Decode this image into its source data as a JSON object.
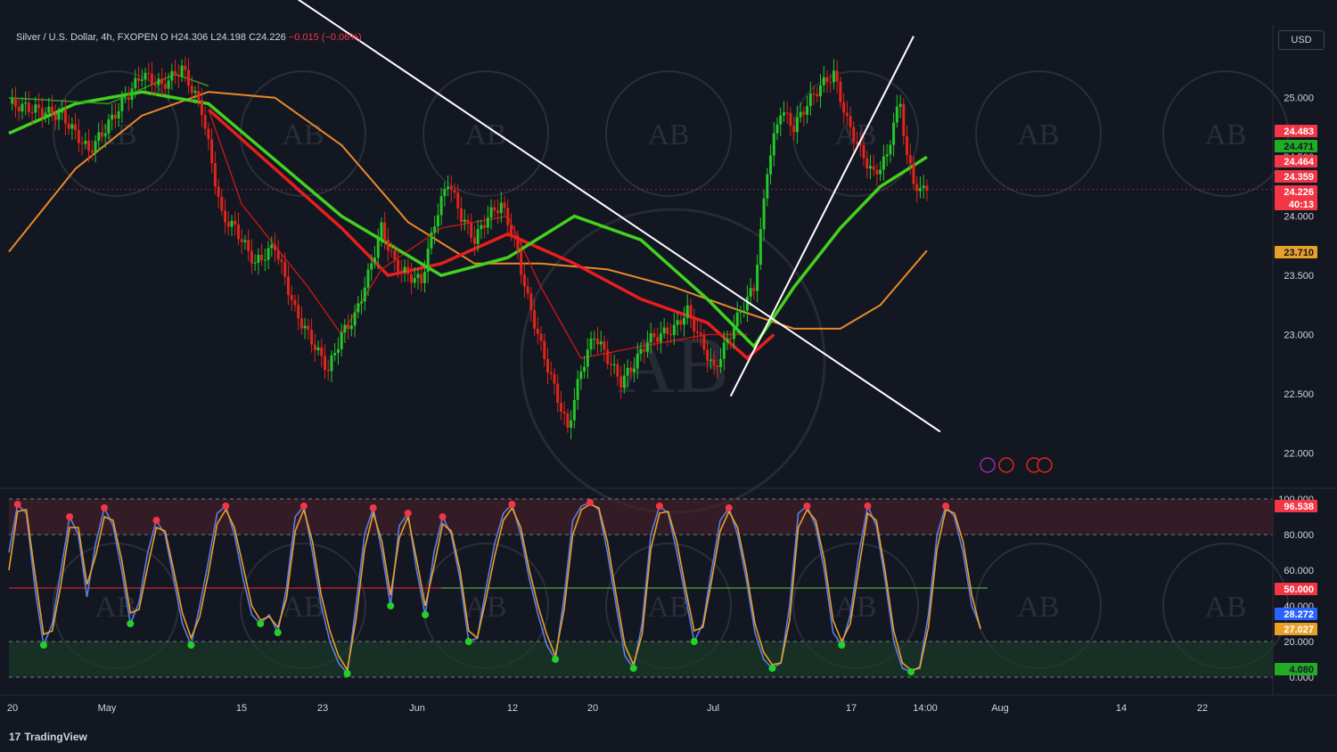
{
  "legend": {
    "symbol": "Silver / U.S. Dollar, 4h, FXOPEN",
    "open": "O",
    "high": "H24.306",
    "low": "L24.198",
    "close": "C24.226",
    "change": "−0.015 (−0.06%)"
  },
  "currency_button": "USD",
  "brand": "TradingView",
  "watermark": "AB",
  "colors": {
    "background": "#131722",
    "up": "#26c628",
    "down": "#e0251b",
    "ema_green": "#43d21e",
    "ema_red": "#e81e1e",
    "ma_orange": "#e8892a",
    "trendline": "#ffffff"
  },
  "chart_data": [
    {
      "type": "candlestick",
      "title": "Silver / U.S. Dollar, 4h, FXOPEN",
      "y_ticks": [
        "25.000",
        "24.500",
        "24.000",
        "23.500",
        "23.000",
        "22.500",
        "22.000"
      ],
      "y_tick_values": [
        25.0,
        24.5,
        24.0,
        23.5,
        23.0,
        22.5,
        22.0
      ],
      "ylim": [
        21.8,
        25.6
      ],
      "x_ticks": [
        "20",
        "May",
        "15",
        "23",
        "Jun",
        "12",
        "20",
        "Jul",
        "17",
        "14:00",
        "Aug",
        "14",
        "22"
      ],
      "price_labels": [
        {
          "value": "24.483",
          "color": "#f23645"
        },
        {
          "value": "24.471",
          "color": "#22ab24"
        },
        {
          "value": "24.464",
          "color": "#f23645"
        },
        {
          "value": "24.359",
          "color": "#f23645"
        },
        {
          "value": "24.226",
          "color": "#f23645"
        },
        {
          "value": "40:13",
          "color": "#f23645"
        },
        {
          "value": "23.710",
          "color": "#e8a02a"
        }
      ],
      "close_path": [
        [
          0,
          24.95
        ],
        [
          8,
          24.9
        ],
        [
          16,
          24.85
        ],
        [
          24,
          24.55
        ],
        [
          28,
          24.7
        ],
        [
          34,
          24.95
        ],
        [
          40,
          25.2
        ],
        [
          46,
          25.1
        ],
        [
          52,
          25.25
        ],
        [
          58,
          24.9
        ],
        [
          64,
          24.0
        ],
        [
          68,
          23.9
        ],
        [
          74,
          23.6
        ],
        [
          80,
          23.75
        ],
        [
          86,
          23.2
        ],
        [
          90,
          23.0
        ],
        [
          96,
          22.7
        ],
        [
          100,
          23.0
        ],
        [
          104,
          23.15
        ],
        [
          108,
          23.5
        ],
        [
          112,
          23.9
        ],
        [
          116,
          23.6
        ],
        [
          120,
          23.5
        ],
        [
          124,
          23.45
        ],
        [
          128,
          23.95
        ],
        [
          132,
          24.3
        ],
        [
          136,
          24.0
        ],
        [
          140,
          23.8
        ],
        [
          144,
          24.0
        ],
        [
          148,
          24.1
        ],
        [
          152,
          23.8
        ],
        [
          156,
          23.3
        ],
        [
          160,
          22.9
        ],
        [
          164,
          22.55
        ],
        [
          168,
          22.2
        ],
        [
          172,
          22.7
        ],
        [
          176,
          23.0
        ],
        [
          180,
          22.8
        ],
        [
          184,
          22.6
        ],
        [
          188,
          22.75
        ],
        [
          192,
          22.95
        ],
        [
          196,
          23.0
        ],
        [
          200,
          23.05
        ],
        [
          204,
          23.2
        ],
        [
          208,
          22.95
        ],
        [
          212,
          22.7
        ],
        [
          216,
          22.95
        ],
        [
          220,
          23.2
        ],
        [
          224,
          23.4
        ],
        [
          226,
          23.85
        ],
        [
          228,
          24.4
        ],
        [
          232,
          24.9
        ],
        [
          236,
          24.75
        ],
        [
          240,
          24.95
        ],
        [
          244,
          25.1
        ],
        [
          248,
          25.2
        ],
        [
          252,
          24.8
        ],
        [
          256,
          24.55
        ],
        [
          260,
          24.35
        ],
        [
          264,
          24.5
        ],
        [
          266,
          24.8
        ],
        [
          268,
          24.95
        ],
        [
          270,
          24.5
        ],
        [
          272,
          24.3
        ],
        [
          274,
          24.2
        ],
        [
          276,
          24.26
        ]
      ],
      "ema_fast_green": [
        [
          0,
          25.0
        ],
        [
          30,
          24.95
        ],
        [
          50,
          25.2
        ],
        [
          60,
          25.1
        ]
      ],
      "ema_red_fast": [
        [
          60,
          24.9
        ],
        [
          70,
          24.1
        ],
        [
          90,
          23.4
        ],
        [
          100,
          23.0
        ],
        [
          112,
          23.55
        ],
        [
          130,
          23.9
        ],
        [
          150,
          24.0
        ],
        [
          160,
          23.4
        ],
        [
          172,
          22.8
        ],
        [
          190,
          22.9
        ],
        [
          210,
          23.0
        ],
        [
          222,
          23.0
        ]
      ],
      "ema_red_slow": [
        [
          60,
          24.9
        ],
        [
          80,
          24.4
        ],
        [
          100,
          23.9
        ],
        [
          114,
          23.5
        ],
        [
          130,
          23.6
        ],
        [
          150,
          23.85
        ],
        [
          170,
          23.6
        ],
        [
          190,
          23.3
        ],
        [
          210,
          23.1
        ],
        [
          222,
          22.8
        ],
        [
          230,
          23.0
        ]
      ],
      "ema_green_slow": [
        [
          0,
          24.7
        ],
        [
          20,
          24.95
        ],
        [
          40,
          25.05
        ],
        [
          60,
          24.95
        ],
        [
          100,
          24.0
        ],
        [
          130,
          23.5
        ],
        [
          150,
          23.65
        ],
        [
          170,
          24.0
        ],
        [
          190,
          23.8
        ],
        [
          210,
          23.3
        ],
        [
          224,
          22.9
        ],
        [
          236,
          23.4
        ],
        [
          250,
          23.9
        ],
        [
          262,
          24.25
        ],
        [
          276,
          24.5
        ]
      ],
      "ma_curve": [
        [
          0,
          23.7
        ],
        [
          20,
          24.4
        ],
        [
          40,
          24.85
        ],
        [
          60,
          25.05
        ],
        [
          80,
          25.0
        ],
        [
          100,
          24.6
        ],
        [
          120,
          23.95
        ],
        [
          140,
          23.6
        ],
        [
          160,
          23.6
        ],
        [
          180,
          23.55
        ],
        [
          200,
          23.4
        ],
        [
          220,
          23.2
        ],
        [
          236,
          23.05
        ],
        [
          250,
          23.05
        ],
        [
          262,
          23.25
        ],
        [
          276,
          23.71
        ]
      ],
      "trendline_down": [
        [
          78,
          26.0
        ],
        [
          280,
          22.18
        ]
      ],
      "trendline_up": [
        [
          217,
          22.48
        ],
        [
          272,
          25.52
        ]
      ]
    },
    {
      "type": "line",
      "title": "Stochastic",
      "y_ticks": [
        "100.000",
        "80.000",
        "60.000",
        "50.000",
        "40.000",
        "20.000",
        "0.000"
      ],
      "y_tick_values": [
        100,
        80,
        60,
        50,
        40,
        20,
        0
      ],
      "ylim": [
        0,
        100
      ],
      "value_labels": [
        {
          "value": "96.538",
          "color": "#f23645"
        },
        {
          "value": "50.000",
          "color": "#f23645"
        },
        {
          "value": "28.272",
          "color": "#2962ff"
        },
        {
          "value": "27.027",
          "color": "#e8a02a"
        },
        {
          "value": "4.080",
          "color": "#22ab24"
        }
      ],
      "series": [
        {
          "name": "",
          "color": "#5b7ee6",
          "values": [
            70,
            97,
            92,
            50,
            18,
            30,
            60,
            90,
            80,
            45,
            75,
            95,
            85,
            60,
            30,
            42,
            70,
            88,
            80,
            55,
            30,
            18,
            40,
            65,
            92,
            96,
            80,
            55,
            35,
            30,
            35,
            25,
            50,
            90,
            96,
            70,
            40,
            20,
            8,
            2,
            40,
            80,
            95,
            70,
            40,
            85,
            92,
            60,
            35,
            70,
            90,
            80,
            55,
            20,
            22,
            50,
            75,
            92,
            97,
            80,
            55,
            35,
            18,
            10,
            45,
            88,
            96,
            98,
            94,
            70,
            40,
            12,
            5,
            30,
            80,
            96,
            92,
            70,
            45,
            20,
            30,
            60,
            88,
            95,
            80,
            55,
            25,
            10,
            5,
            8,
            40,
            92,
            96,
            85,
            60,
            25,
            18,
            35,
            70,
            96,
            85,
            55,
            20,
            5,
            3,
            6,
            35,
            80,
            96,
            90,
            70,
            40,
            28
          ]
        },
        {
          "name": "",
          "color": "#e8a02a",
          "values": [
            60,
            93,
            94,
            58,
            24,
            26,
            52,
            84,
            84,
            52,
            68,
            90,
            88,
            66,
            36,
            38,
            62,
            84,
            82,
            60,
            36,
            22,
            34,
            58,
            86,
            94,
            84,
            62,
            40,
            32,
            34,
            28,
            44,
            82,
            94,
            76,
            46,
            26,
            12,
            4,
            32,
            72,
            92,
            76,
            46,
            78,
            90,
            66,
            40,
            62,
            86,
            82,
            60,
            26,
            22,
            44,
            68,
            88,
            95,
            84,
            60,
            40,
            24,
            12,
            38,
            80,
            94,
            97,
            95,
            76,
            46,
            18,
            7,
            24,
            72,
            92,
            93,
            76,
            50,
            26,
            28,
            54,
            82,
            93,
            84,
            60,
            30,
            14,
            7,
            8,
            32,
            84,
            94,
            88,
            66,
            32,
            20,
            30,
            62,
            92,
            88,
            60,
            26,
            8,
            4,
            5,
            28,
            72,
            94,
            92,
            76,
            46,
            27
          ]
        }
      ]
    }
  ]
}
